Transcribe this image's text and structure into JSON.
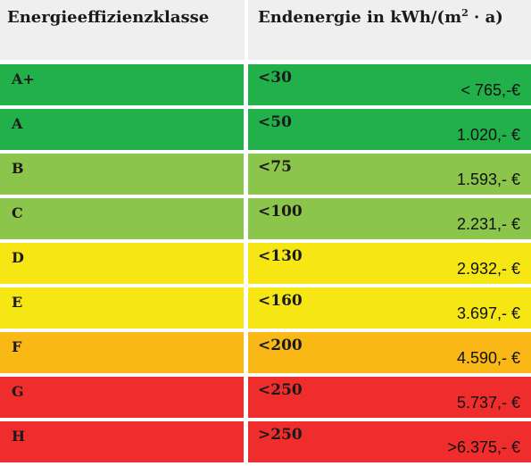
{
  "header": {
    "class_title": "Energieeffizienzklasse",
    "energy_title_main": "Endenergie in kWh/(m",
    "energy_title_sup": "2",
    "energy_title_end": " · a)"
  },
  "rows": [
    {
      "class": "A+",
      "threshold": "<30",
      "cost": "< 765,-€",
      "color": "#22b04b"
    },
    {
      "class": "A",
      "threshold": "<50",
      "cost": "1.020,- €",
      "color": "#22b04b"
    },
    {
      "class": "B",
      "threshold": "<75",
      "cost": "1.593,- €",
      "color": "#8cc54b"
    },
    {
      "class": "C",
      "threshold": "<100",
      "cost": "2.231,- €",
      "color": "#8cc54b"
    },
    {
      "class": "D",
      "threshold": "<130",
      "cost": "2.932,- €",
      "color": "#f5e614"
    },
    {
      "class": "E",
      "threshold": "<160",
      "cost": "3.697,- €",
      "color": "#f5e614"
    },
    {
      "class": "F",
      "threshold": "<200",
      "cost": "4.590,- €",
      "color": "#fab817"
    },
    {
      "class": "G",
      "threshold": "<250",
      "cost": "5.737,- €",
      "color": "#ee2d2c"
    },
    {
      "class": "H",
      "threshold": ">250",
      "cost": ">6.375,- €",
      "color": "#ee2d2c"
    }
  ]
}
